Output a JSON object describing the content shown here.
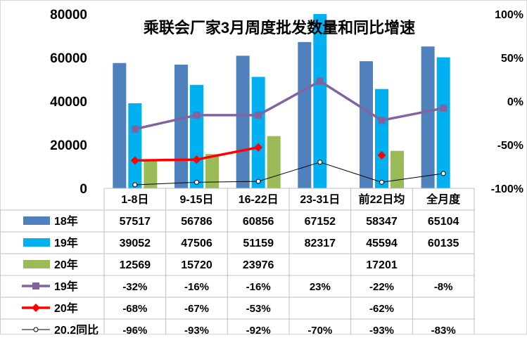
{
  "chart_data": {
    "type": "bar",
    "title": "乘联会厂家3月周度批发数量和同比增速",
    "categories": [
      "1-8日",
      "9-15日",
      "16-22日",
      "23-31日",
      "前22日均",
      "全月度"
    ],
    "left_axis": {
      "min": 0,
      "max": 80000,
      "ticks": [
        "0",
        "20000",
        "40000",
        "60000",
        "80000"
      ]
    },
    "right_axis": {
      "min": -100,
      "max": 100,
      "ticks": [
        "-100%",
        "-50%",
        "0%",
        "50%",
        "100%"
      ]
    },
    "bar_series": [
      {
        "name": "18年",
        "color": "#4F81BD",
        "values": [
          57517,
          56786,
          60856,
          67152,
          58347,
          65104
        ],
        "labels": [
          "57517",
          "56786",
          "60856",
          "67152",
          "58347",
          "65104"
        ]
      },
      {
        "name": "19年",
        "color": "#00B0F0",
        "values": [
          39052,
          47506,
          51159,
          82317,
          45594,
          60135
        ],
        "labels": [
          "39052",
          "47506",
          "51159",
          "82317",
          "45594",
          "60135"
        ]
      },
      {
        "name": "20年",
        "color": "#9BBB59",
        "values": [
          12569,
          15720,
          23976,
          null,
          17201,
          null
        ],
        "labels": [
          "12569",
          "15720",
          "23976",
          "",
          "17201",
          ""
        ]
      }
    ],
    "line_series": [
      {
        "name": "19年",
        "color": "#8064A2",
        "marker": "square",
        "values": [
          -32,
          -16,
          -16,
          23,
          -22,
          -8
        ],
        "labels": [
          "-32%",
          "-16%",
          "-16%",
          "23%",
          "-22%",
          "-8%"
        ]
      },
      {
        "name": "20年",
        "color": "#FF0000",
        "marker": "diamond",
        "values": [
          -68,
          -67,
          -53,
          null,
          -62,
          null
        ],
        "labels": [
          "-68%",
          "-67%",
          "-53%",
          "",
          "-62%",
          ""
        ]
      },
      {
        "name": "20.2同比",
        "color": "#000000",
        "marker": "circle",
        "values": [
          -96,
          -93,
          -92,
          -70,
          -93,
          -83
        ],
        "labels": [
          "-96%",
          "-93%",
          "-92%",
          "-70%",
          "-93%",
          "-83%"
        ]
      }
    ]
  }
}
